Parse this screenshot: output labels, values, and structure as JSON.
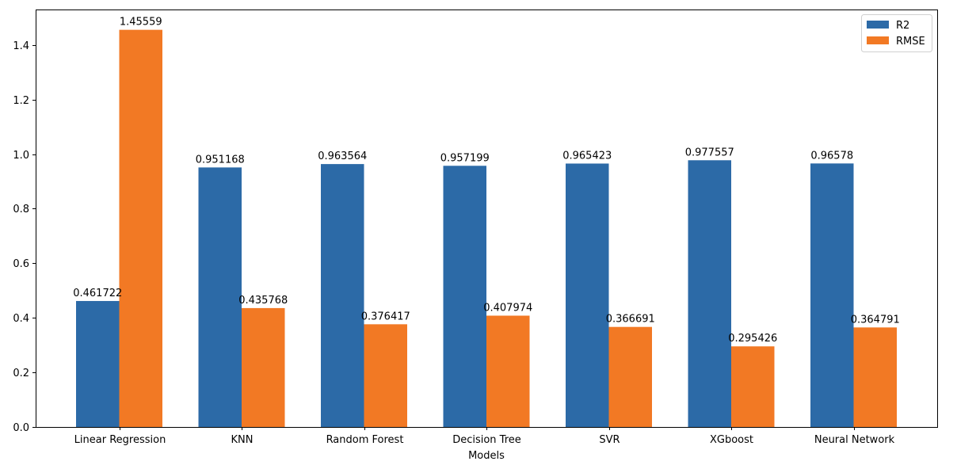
{
  "chart_data": {
    "type": "bar",
    "title": "",
    "xlabel": "Models",
    "ylabel": "",
    "categories": [
      "Linear Regression",
      "KNN",
      "Random Forest",
      "Decision Tree",
      "SVR",
      "XGboost",
      "Neural Network"
    ],
    "series": [
      {
        "name": "R2",
        "color": "#2c6aa7",
        "values": [
          0.461722,
          0.951168,
          0.963564,
          0.957199,
          0.965423,
          0.977557,
          0.96578
        ],
        "labels": [
          "0.461722",
          "0.951168",
          "0.963564",
          "0.957199",
          "0.965423",
          "0.977557",
          "0.96578"
        ]
      },
      {
        "name": "RMSE",
        "color": "#f27924",
        "values": [
          1.45559,
          0.435768,
          0.376417,
          0.407974,
          0.366691,
          0.295426,
          0.364791
        ],
        "labels": [
          "1.45559",
          "0.435768",
          "0.376417",
          "0.407974",
          "0.366691",
          "0.295426",
          "0.364791"
        ]
      }
    ],
    "ylim": [
      0,
      1.53
    ],
    "yticks": [
      0.0,
      0.2,
      0.4,
      0.6,
      0.8,
      1.0,
      1.2,
      1.4
    ],
    "ytick_labels": [
      "0.0",
      "0.2",
      "0.4",
      "0.6",
      "0.8",
      "1.0",
      "1.2",
      "1.4"
    ],
    "grid": false,
    "legend_position": "top-right"
  }
}
